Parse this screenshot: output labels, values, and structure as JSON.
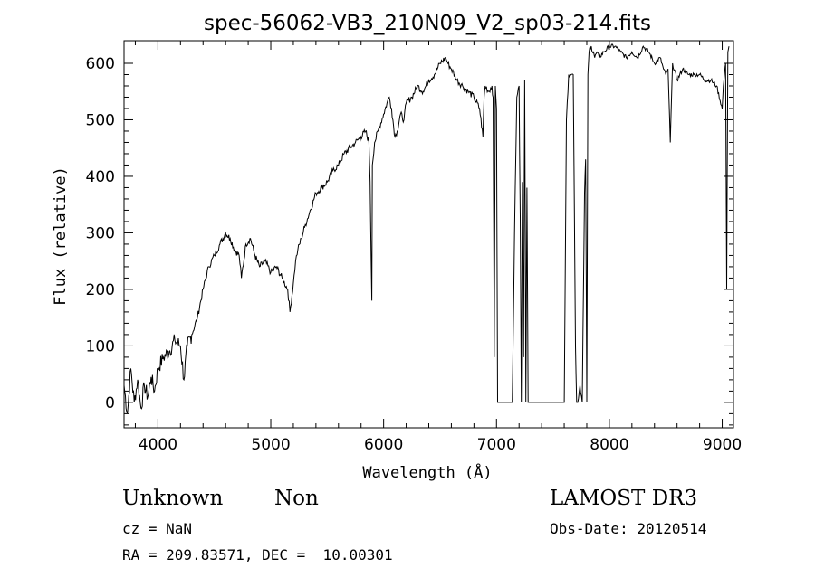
{
  "chart_data": {
    "type": "line",
    "title": "spec-56062-VB3_210N09_V2_sp03-214.fits",
    "xlabel": "Wavelength (Å)",
    "ylabel": "Flux (relative)",
    "xlim": [
      3700,
      9100
    ],
    "ylim": [
      -45,
      640
    ],
    "xticks": [
      4000,
      5000,
      6000,
      7000,
      8000,
      9000
    ],
    "yticks": [
      0,
      100,
      200,
      300,
      400,
      500,
      600
    ],
    "grid": false,
    "series": [
      {
        "x": [
          3700,
          3730,
          3760,
          3790,
          3820,
          3850,
          3880,
          3910,
          3940,
          3970,
          4000,
          4050,
          4100,
          4150,
          4200,
          4230,
          4260,
          4300,
          4350,
          4400,
          4450,
          4500,
          4550,
          4600,
          4640,
          4680,
          4720,
          4740,
          4780,
          4820,
          4860,
          4900,
          4950,
          5000,
          5050,
          5100,
          5150,
          5170,
          5200,
          5220,
          5240,
          5270,
          5300,
          5350,
          5400,
          5450,
          5500,
          5550,
          5600,
          5650,
          5700,
          5750,
          5800,
          5840,
          5870,
          5880,
          5890,
          5895,
          5900,
          5920,
          5950,
          6000,
          6030,
          6050,
          6070,
          6100,
          6120,
          6150,
          6180,
          6200,
          6250,
          6300,
          6350,
          6400,
          6450,
          6500,
          6550,
          6570,
          6600,
          6650,
          6700,
          6750,
          6800,
          6850,
          6880,
          6890,
          6900,
          6930,
          6960,
          6970,
          6980,
          6990,
          7000,
          7010,
          7030,
          7050,
          7100,
          7140,
          7160,
          7180,
          7200,
          7210,
          7220,
          7230,
          7240,
          7250,
          7260,
          7270,
          7280,
          7290,
          7300,
          7350,
          7400,
          7450,
          7500,
          7550,
          7580,
          7600,
          7620,
          7640,
          7660,
          7680,
          7700,
          7710,
          7720,
          7740,
          7760,
          7780,
          7790,
          7800,
          7810,
          7820,
          7830,
          7840,
          7850,
          7860,
          7870,
          7890,
          7910,
          7950,
          8000,
          8050,
          8100,
          8150,
          8200,
          8250,
          8300,
          8350,
          8400,
          8450,
          8480,
          8500,
          8520,
          8540,
          8560,
          8600,
          8650,
          8700,
          8750,
          8800,
          8850,
          8900,
          8950,
          9000,
          9010,
          9020,
          9030,
          9040,
          9050,
          9060
        ],
        "y": [
          30,
          -20,
          60,
          0,
          40,
          -10,
          30,
          10,
          45,
          20,
          60,
          80,
          90,
          110,
          100,
          40,
          100,
          120,
          150,
          200,
          240,
          260,
          280,
          300,
          290,
          270,
          260,
          220,
          280,
          290,
          260,
          240,
          250,
          230,
          240,
          220,
          200,
          160,
          210,
          250,
          270,
          290,
          310,
          340,
          370,
          380,
          390,
          410,
          420,
          440,
          450,
          460,
          470,
          480,
          460,
          390,
          250,
          180,
          420,
          460,
          480,
          510,
          530,
          540,
          520,
          470,
          480,
          510,
          500,
          530,
          540,
          560,
          550,
          570,
          580,
          600,
          610,
          600,
          590,
          570,
          560,
          550,
          540,
          520,
          470,
          540,
          560,
          550,
          560,
          540,
          80,
          560,
          520,
          0,
          0,
          0,
          0,
          0,
          300,
          540,
          560,
          330,
          0,
          390,
          80,
          570,
          0,
          380,
          0,
          0,
          0,
          0,
          0,
          0,
          0,
          0,
          0,
          0,
          500,
          580,
          580,
          580,
          100,
          0,
          0,
          30,
          0,
          370,
          430,
          0,
          580,
          620,
          630,
          630,
          620,
          620,
          610,
          620,
          610,
          620,
          630,
          630,
          620,
          610,
          620,
          610,
          630,
          620,
          600,
          610,
          590,
          580,
          590,
          460,
          600,
          570,
          590,
          580,
          580,
          580,
          570,
          570,
          560,
          520,
          560,
          580,
          600,
          200,
          620,
          630
        ]
      }
    ]
  },
  "info": {
    "class_label": "Unknown",
    "subclass_label": "Non",
    "survey": "LAMOST DR3",
    "cz": "cz = NaN",
    "obs_date": "Obs-Date: 20120514",
    "coords": "RA = 209.83571, DEC =  10.00301"
  }
}
